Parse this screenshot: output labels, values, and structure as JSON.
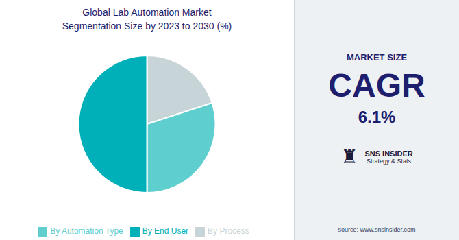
{
  "chart_data": {
    "type": "pie",
    "title": "Global Lab Automation Market",
    "subtitle": "Segmentation Size by 2023 to 2030 (%)",
    "categories": [
      "By Process",
      "By Automation Type",
      "By End User"
    ],
    "values": [
      20,
      30,
      50
    ],
    "colors": [
      "#c8d5d8",
      "#5ecece",
      "#00b0b8"
    ],
    "legend": "bottom",
    "annotations": [
      "MARKET SIZE",
      "CAGR",
      "6.1%",
      "♜",
      "SNS INSIDER",
      "Strategy & Stats",
      "source: www.snsinsider.com"
    ]
  }
}
